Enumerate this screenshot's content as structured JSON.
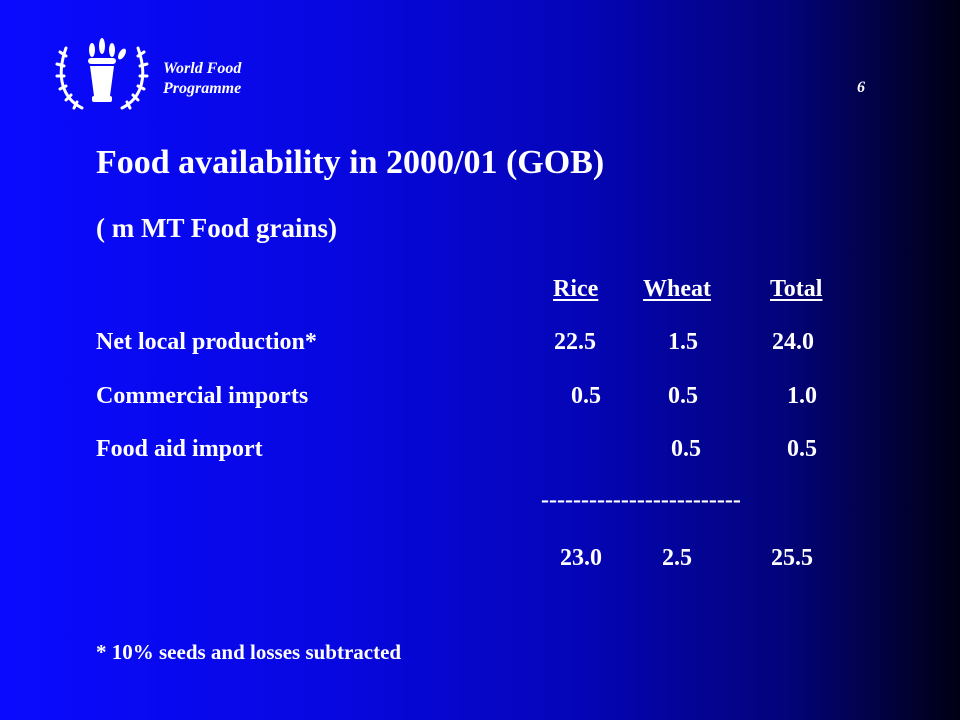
{
  "header": {
    "org_line1": "World Food",
    "org_line2": "Programme",
    "page_number": "6",
    "logo_icon": "wfp-emblem-icon"
  },
  "title": "Food availability in 2000/01 (GOB)",
  "subtitle": "( m MT Food grains)",
  "table": {
    "columns": [
      "Rice",
      "Wheat",
      "Total"
    ],
    "rows": [
      {
        "label": "Net local production*",
        "rice": "22.5",
        "wheat": "1.5",
        "total": "24.0"
      },
      {
        "label": "Commercial imports",
        "rice": "0.5",
        "wheat": "0.5",
        "total": "1.0"
      },
      {
        "label": "Food aid import",
        "rice": "",
        "wheat": "0.5",
        "total": "0.5"
      }
    ],
    "separator": "-------------------------",
    "totals": {
      "rice": "23.0",
      "wheat": "2.5",
      "total": "25.5"
    }
  },
  "footnote": "* 10% seeds and losses subtracted",
  "colors": {
    "background_left": "#0a0aff",
    "background_right": "#000014",
    "text": "#ffffff"
  }
}
